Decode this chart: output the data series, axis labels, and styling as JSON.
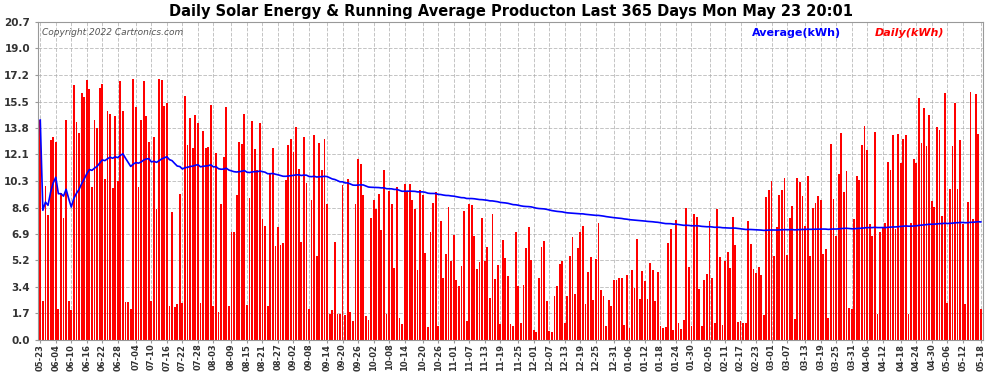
{
  "title": "Daily Solar Energy & Running Average Producton Last 365 Days Mon May 23 20:01",
  "copyright": "Copyright 2022 Cartronics.com",
  "legend_avg": "Average(kWh)",
  "legend_daily": "Daily(kWh)",
  "ymax": 20.7,
  "yticks": [
    0.0,
    1.7,
    3.4,
    5.2,
    6.9,
    8.6,
    10.3,
    12.1,
    13.8,
    15.5,
    17.2,
    19.0,
    20.7
  ],
  "bar_color": "#ff0000",
  "avg_color": "#0000ff",
  "bg_color": "#ffffff",
  "grid_color": "#aaaaaa",
  "title_color": "#000000",
  "n_bars": 365,
  "x_labels": [
    "05-23",
    "06-04",
    "06-10",
    "06-16",
    "06-22",
    "06-28",
    "07-04",
    "07-10",
    "07-16",
    "07-22",
    "07-28",
    "08-03",
    "08-09",
    "08-15",
    "08-21",
    "08-27",
    "09-02",
    "09-08",
    "09-14",
    "09-20",
    "09-26",
    "10-02",
    "10-08",
    "10-14",
    "10-20",
    "10-26",
    "11-01",
    "11-07",
    "11-13",
    "11-19",
    "11-25",
    "12-01",
    "12-07",
    "12-13",
    "12-19",
    "12-25",
    "12-31",
    "01-06",
    "01-12",
    "01-18",
    "01-24",
    "01-30",
    "02-05",
    "02-11",
    "02-17",
    "02-23",
    "03-01",
    "03-07",
    "03-13",
    "03-19",
    "03-25",
    "03-31",
    "04-06",
    "04-12",
    "04-18",
    "04-24",
    "04-30",
    "05-06",
    "05-12",
    "05-18"
  ]
}
